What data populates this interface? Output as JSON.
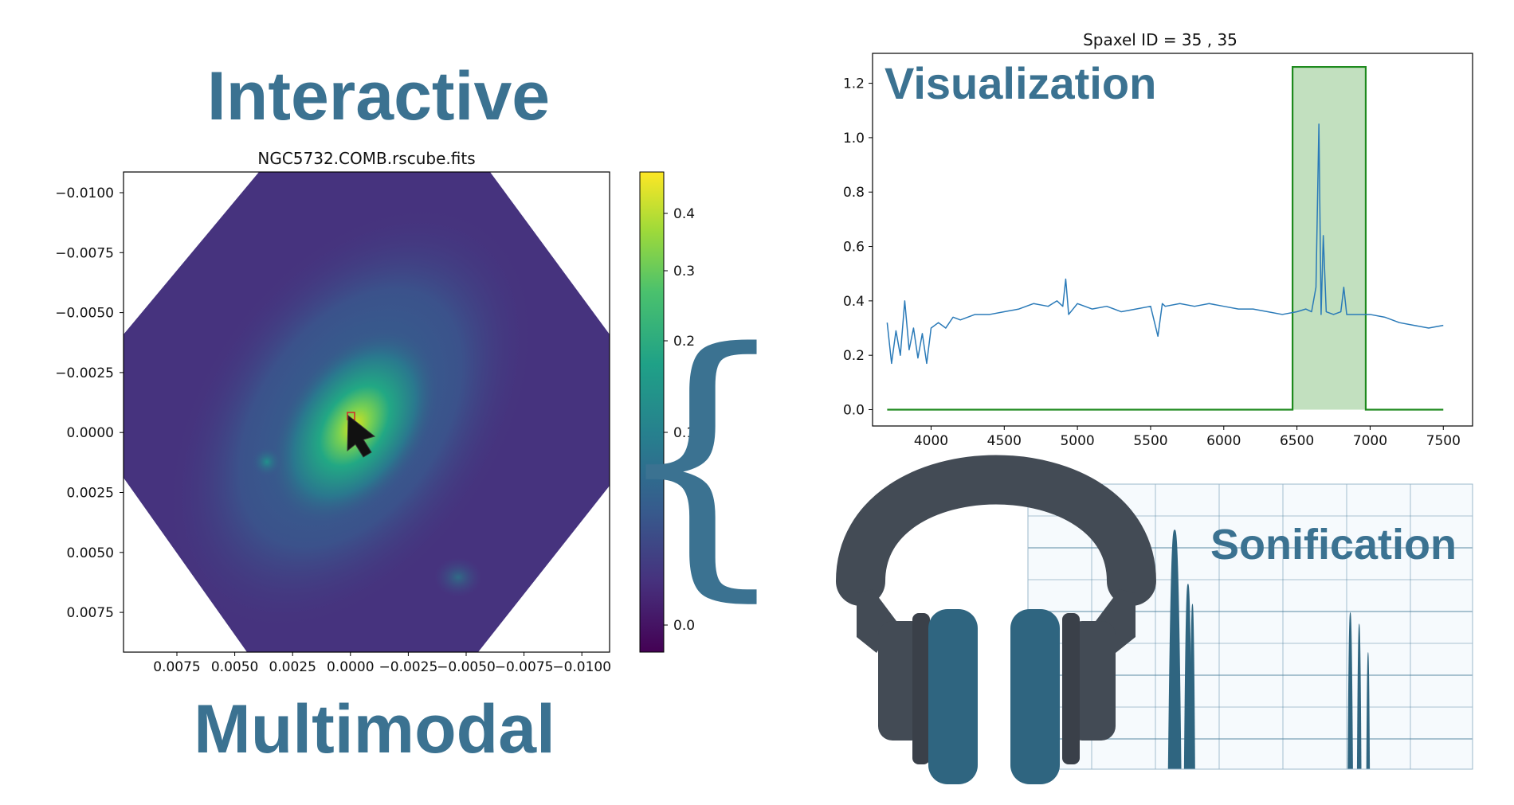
{
  "headings": {
    "top": "Interactive",
    "bottom": "Multimodal",
    "visualization": "Visualization",
    "sonification": "Sonification"
  },
  "colors": {
    "heading": "#3b7291",
    "spectrum_line": "#2a7ab8",
    "window_fill": "#c2e0bf",
    "window_edge": "#1e8a1e",
    "headphone_band": "#434b55",
    "headphone_cup": "#2f6580",
    "sonification_bg": "#f6fafd",
    "sonification_grid": "#4b7f9c"
  },
  "image_panel": {
    "title": "NGC5732.COMB.rscube.fits",
    "y_ticks": [
      "−0.0100",
      "−0.0075",
      "−0.0050",
      "−0.0025",
      "0.0000",
      "0.0025",
      "0.0050",
      "0.0075"
    ],
    "x_ticks": [
      "0.0075",
      "0.0050",
      "0.0025",
      "0.0000",
      "−0.0025",
      "−0.0050",
      "−0.0075",
      "−0.0100"
    ],
    "colorbar_ticks": [
      "0.4",
      "0.3",
      "0.2",
      "0.1",
      "0.0"
    ],
    "colormap": "viridis",
    "pointer": "cursor-arrow-icon"
  },
  "brace": "{",
  "chart_data": {
    "type": "line",
    "title": "Spaxel ID = 35 , 35",
    "xlabel": "",
    "ylabel": "",
    "xlim": [
      3600,
      7700
    ],
    "ylim": [
      -0.06,
      1.31
    ],
    "x_ticks": [
      4000,
      4500,
      5000,
      5500,
      6000,
      6500,
      7000,
      7500
    ],
    "y_ticks": [
      0.0,
      0.2,
      0.4,
      0.6,
      0.8,
      1.0,
      1.2
    ],
    "grid": false,
    "series": [
      {
        "type": "line",
        "x": [
          3700,
          3730,
          3760,
          3790,
          3820,
          3850,
          3880,
          3910,
          3940,
          3970,
          4000,
          4050,
          4100,
          4150,
          4200,
          4300,
          4400,
          4500,
          4600,
          4700,
          4800,
          4860,
          4900,
          4920,
          4940,
          5000,
          5100,
          5200,
          5300,
          5400,
          5500,
          5550,
          5580,
          5600,
          5700,
          5800,
          5900,
          6000,
          6100,
          6200,
          6300,
          6400,
          6500,
          6560,
          6600,
          6630,
          6650,
          6665,
          6680,
          6700,
          6750,
          6800,
          6820,
          6840,
          6900,
          7000,
          7100,
          7200,
          7300,
          7400,
          7500
        ],
        "y": [
          0.32,
          0.17,
          0.29,
          0.2,
          0.4,
          0.22,
          0.3,
          0.19,
          0.28,
          0.17,
          0.3,
          0.32,
          0.3,
          0.34,
          0.33,
          0.35,
          0.35,
          0.36,
          0.37,
          0.39,
          0.38,
          0.4,
          0.38,
          0.48,
          0.35,
          0.39,
          0.37,
          0.38,
          0.36,
          0.37,
          0.38,
          0.27,
          0.39,
          0.38,
          0.39,
          0.38,
          0.39,
          0.38,
          0.37,
          0.37,
          0.36,
          0.35,
          0.36,
          0.37,
          0.36,
          0.45,
          1.05,
          0.35,
          0.64,
          0.36,
          0.35,
          0.36,
          0.45,
          0.35,
          0.35,
          0.35,
          0.34,
          0.32,
          0.31,
          0.3,
          0.31
        ]
      },
      {
        "type": "window",
        "x": [
          3700,
          6470,
          6470,
          6970,
          6970,
          7500
        ],
        "y": [
          0.0,
          0.0,
          1.26,
          1.26,
          0.0,
          0.0
        ]
      }
    ]
  },
  "sonification_chart": {
    "type": "area",
    "peaks": [
      {
        "center": 0.33,
        "width": 0.03,
        "height": 0.84
      },
      {
        "center": 0.36,
        "width": 0.018,
        "height": 0.65
      },
      {
        "center": 0.37,
        "width": 0.012,
        "height": 0.58
      },
      {
        "center": 0.725,
        "width": 0.012,
        "height": 0.55
      },
      {
        "center": 0.745,
        "width": 0.01,
        "height": 0.51
      },
      {
        "center": 0.765,
        "width": 0.008,
        "height": 0.41
      }
    ]
  }
}
